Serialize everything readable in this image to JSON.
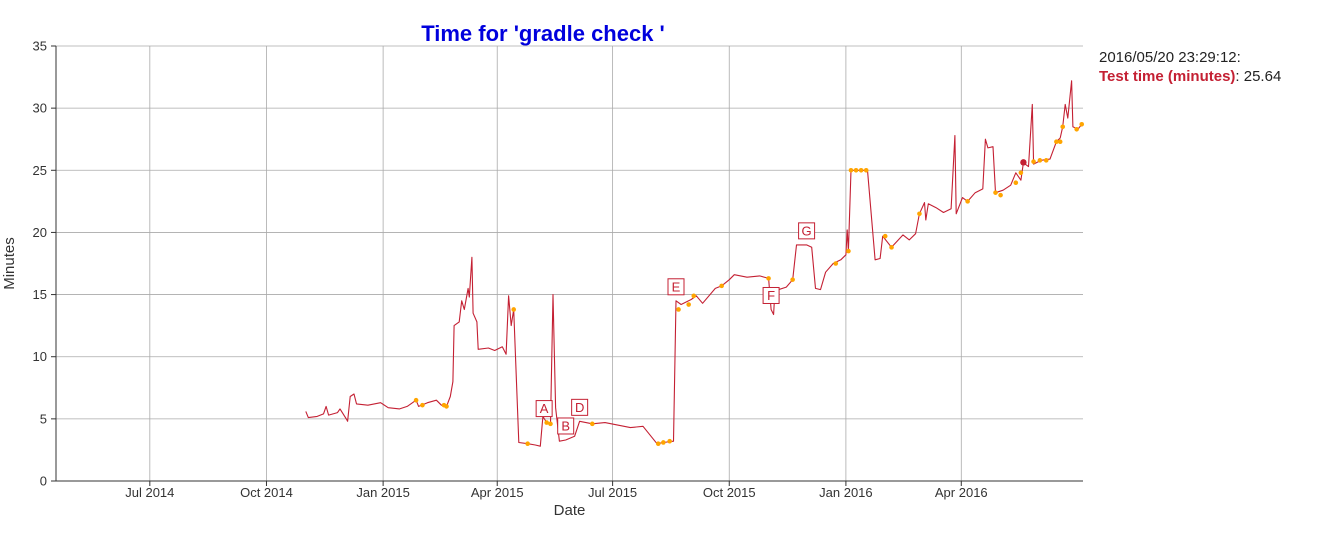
{
  "legend": {
    "timestamp": "2016/05/20 23:29:12:",
    "series_label": "Test time (minutes)",
    "series_value": "25.64"
  },
  "colors": {
    "line": "#c42033",
    "highlight_points": "#ffa500",
    "title": "#0000dd",
    "grid": "#aaaaaa"
  },
  "chart_data": {
    "type": "line",
    "title": "Time for 'gradle check '",
    "xlabel": "Date",
    "ylabel": "Minutes",
    "ylim": [
      0,
      35
    ],
    "xlim": [
      "2014-04-18",
      "2016-07-06"
    ],
    "yticks": [
      0,
      5,
      10,
      15,
      20,
      25,
      30,
      35
    ],
    "xticks": [
      {
        "date": "2014-07-01",
        "label": "Jul 2014"
      },
      {
        "date": "2014-10-01",
        "label": "Oct 2014"
      },
      {
        "date": "2015-01-01",
        "label": "Jan 2015"
      },
      {
        "date": "2015-04-01",
        "label": "Apr 2015"
      },
      {
        "date": "2015-07-01",
        "label": "Jul 2015"
      },
      {
        "date": "2015-10-01",
        "label": "Oct 2015"
      },
      {
        "date": "2016-01-01",
        "label": "Jan 2016"
      },
      {
        "date": "2016-04-01",
        "label": "Apr 2016"
      }
    ],
    "grid": true,
    "series": [
      {
        "name": "Test time (minutes)",
        "points": [
          [
            "2014-11-01",
            5.6
          ],
          [
            "2014-11-03",
            5.1
          ],
          [
            "2014-11-10",
            5.2
          ],
          [
            "2014-11-15",
            5.4
          ],
          [
            "2014-11-17",
            6.0
          ],
          [
            "2014-11-19",
            5.3
          ],
          [
            "2014-11-26",
            5.5
          ],
          [
            "2014-11-28",
            5.8
          ],
          [
            "2014-12-03",
            5.0
          ],
          [
            "2014-12-04",
            4.8
          ],
          [
            "2014-12-06",
            6.8
          ],
          [
            "2014-12-09",
            7.0
          ],
          [
            "2014-12-11",
            6.2
          ],
          [
            "2014-12-20",
            6.1
          ],
          [
            "2014-12-30",
            6.3
          ],
          [
            "2015-01-05",
            5.9
          ],
          [
            "2015-01-14",
            5.8
          ],
          [
            "2015-01-20",
            6.0
          ],
          [
            "2015-01-27",
            6.5
          ],
          [
            "2015-01-29",
            6.0
          ],
          [
            "2015-02-05",
            6.3
          ],
          [
            "2015-02-12",
            6.5
          ],
          [
            "2015-02-16",
            6.1
          ],
          [
            "2015-02-20",
            6.0
          ],
          [
            "2015-02-23",
            6.8
          ],
          [
            "2015-02-25",
            8.0
          ],
          [
            "2015-02-26",
            12.5
          ],
          [
            "2015-03-02",
            12.8
          ],
          [
            "2015-03-04",
            14.5
          ],
          [
            "2015-03-06",
            13.8
          ],
          [
            "2015-03-09",
            15.5
          ],
          [
            "2015-03-10",
            14.8
          ],
          [
            "2015-03-12",
            18.0
          ],
          [
            "2015-03-13",
            13.5
          ],
          [
            "2015-03-16",
            12.8
          ],
          [
            "2015-03-17",
            10.6
          ],
          [
            "2015-03-25",
            10.7
          ],
          [
            "2015-03-30",
            10.5
          ],
          [
            "2015-04-05",
            10.8
          ],
          [
            "2015-04-08",
            10.2
          ],
          [
            "2015-04-10",
            14.9
          ],
          [
            "2015-04-12",
            12.5
          ],
          [
            "2015-04-14",
            13.8
          ],
          [
            "2015-04-18",
            3.1
          ],
          [
            "2015-04-25",
            3.0
          ],
          [
            "2015-05-01",
            2.9
          ],
          [
            "2015-05-05",
            2.8
          ],
          [
            "2015-05-07",
            5.2
          ],
          [
            "2015-05-10",
            4.7
          ],
          [
            "2015-05-13",
            4.6
          ],
          [
            "2015-05-15",
            15.0
          ],
          [
            "2015-05-17",
            5.9
          ],
          [
            "2015-05-20",
            3.2
          ],
          [
            "2015-05-25",
            3.3
          ],
          [
            "2015-06-01",
            3.6
          ],
          [
            "2015-06-05",
            4.8
          ],
          [
            "2015-06-15",
            4.6
          ],
          [
            "2015-06-25",
            4.7
          ],
          [
            "2015-07-05",
            4.5
          ],
          [
            "2015-07-15",
            4.3
          ],
          [
            "2015-07-25",
            4.4
          ],
          [
            "2015-08-05",
            3.0
          ],
          [
            "2015-08-10",
            3.1
          ],
          [
            "2015-08-18",
            3.2
          ],
          [
            "2015-08-20",
            14.5
          ],
          [
            "2015-08-24",
            14.2
          ],
          [
            "2015-09-01",
            14.6
          ],
          [
            "2015-09-05",
            14.9
          ],
          [
            "2015-09-10",
            14.3
          ],
          [
            "2015-09-20",
            15.5
          ],
          [
            "2015-09-25",
            15.7
          ],
          [
            "2015-10-01",
            16.2
          ],
          [
            "2015-10-05",
            16.6
          ],
          [
            "2015-10-15",
            16.4
          ],
          [
            "2015-10-25",
            16.5
          ],
          [
            "2015-11-01",
            16.3
          ],
          [
            "2015-11-03",
            13.8
          ],
          [
            "2015-11-05",
            13.4
          ],
          [
            "2015-11-06",
            15.3
          ],
          [
            "2015-11-15",
            15.6
          ],
          [
            "2015-11-20",
            16.2
          ],
          [
            "2015-11-23",
            19.0
          ],
          [
            "2015-12-01",
            19.0
          ],
          [
            "2015-12-05",
            18.8
          ],
          [
            "2015-12-08",
            15.5
          ],
          [
            "2015-12-12",
            15.4
          ],
          [
            "2015-12-16",
            16.8
          ],
          [
            "2015-12-22",
            17.5
          ],
          [
            "2015-12-28",
            17.8
          ],
          [
            "2016-01-01",
            18.2
          ],
          [
            "2016-01-02",
            20.2
          ],
          [
            "2016-01-03",
            18.5
          ],
          [
            "2016-01-05",
            25.0
          ],
          [
            "2016-01-18",
            25.0
          ],
          [
            "2016-01-24",
            17.8
          ],
          [
            "2016-01-28",
            17.9
          ],
          [
            "2016-01-30",
            19.7
          ],
          [
            "2016-02-06",
            18.8
          ],
          [
            "2016-02-15",
            19.8
          ],
          [
            "2016-02-20",
            19.4
          ],
          [
            "2016-02-25",
            19.9
          ],
          [
            "2016-02-28",
            21.5
          ],
          [
            "2016-03-03",
            22.4
          ],
          [
            "2016-03-04",
            21.0
          ],
          [
            "2016-03-06",
            22.3
          ],
          [
            "2016-03-12",
            22.0
          ],
          [
            "2016-03-18",
            21.6
          ],
          [
            "2016-03-24",
            21.9
          ],
          [
            "2016-03-27",
            27.8
          ],
          [
            "2016-03-28",
            21.5
          ],
          [
            "2016-04-02",
            22.8
          ],
          [
            "2016-04-06",
            22.5
          ],
          [
            "2016-04-12",
            23.2
          ],
          [
            "2016-04-18",
            23.5
          ],
          [
            "2016-04-20",
            27.5
          ],
          [
            "2016-04-22",
            26.8
          ],
          [
            "2016-04-26",
            26.9
          ],
          [
            "2016-04-28",
            23.2
          ],
          [
            "2016-05-04",
            23.4
          ],
          [
            "2016-05-10",
            23.8
          ],
          [
            "2016-05-14",
            24.8
          ],
          [
            "2016-05-18",
            24.2
          ],
          [
            "2016-05-20",
            25.6
          ],
          [
            "2016-05-24",
            25.3
          ],
          [
            "2016-05-27",
            30.3
          ],
          [
            "2016-05-28",
            25.5
          ],
          [
            "2016-06-03",
            25.8
          ],
          [
            "2016-06-10",
            25.9
          ],
          [
            "2016-06-15",
            27.3
          ],
          [
            "2016-06-18",
            27.6
          ],
          [
            "2016-06-20",
            28.5
          ],
          [
            "2016-06-22",
            30.3
          ],
          [
            "2016-06-24",
            29.2
          ],
          [
            "2016-06-27",
            32.2
          ],
          [
            "2016-06-28",
            28.5
          ],
          [
            "2016-07-02",
            28.3
          ],
          [
            "2016-07-05",
            28.7
          ]
        ]
      }
    ],
    "highlight_points": [
      [
        "2015-01-27",
        6.5
      ],
      [
        "2015-02-01",
        6.1
      ],
      [
        "2015-02-18",
        6.1
      ],
      [
        "2015-02-20",
        6.0
      ],
      [
        "2015-04-14",
        13.8
      ],
      [
        "2015-04-25",
        3.0
      ],
      [
        "2015-05-10",
        4.7
      ],
      [
        "2015-05-13",
        4.6
      ],
      [
        "2015-06-15",
        4.6
      ],
      [
        "2015-08-06",
        3.0
      ],
      [
        "2015-08-10",
        3.1
      ],
      [
        "2015-08-15",
        3.2
      ],
      [
        "2015-08-22",
        13.8
      ],
      [
        "2015-08-30",
        14.2
      ],
      [
        "2015-09-03",
        14.9
      ],
      [
        "2015-09-25",
        15.7
      ],
      [
        "2015-11-01",
        16.3
      ],
      [
        "2015-11-20",
        16.2
      ],
      [
        "2015-12-24",
        17.5
      ],
      [
        "2016-01-03",
        18.5
      ],
      [
        "2016-01-05",
        25.0
      ],
      [
        "2016-01-09",
        25.0
      ],
      [
        "2016-01-13",
        25.0
      ],
      [
        "2016-01-17",
        25.0
      ],
      [
        "2016-02-01",
        19.7
      ],
      [
        "2016-02-06",
        18.8
      ],
      [
        "2016-02-28",
        21.5
      ],
      [
        "2016-04-06",
        22.5
      ],
      [
        "2016-04-28",
        23.2
      ],
      [
        "2016-05-02",
        23.0
      ],
      [
        "2016-05-14",
        24.0
      ],
      [
        "2016-05-18",
        24.8
      ],
      [
        "2016-05-28",
        25.7
      ],
      [
        "2016-06-02",
        25.8
      ],
      [
        "2016-06-07",
        25.8
      ],
      [
        "2016-06-15",
        27.3
      ],
      [
        "2016-06-18",
        27.3
      ],
      [
        "2016-06-20",
        28.5
      ],
      [
        "2016-07-01",
        28.3
      ],
      [
        "2016-07-05",
        28.7
      ]
    ],
    "selected_point": [
      "2016-05-20",
      25.64
    ],
    "annotations": [
      {
        "label": "A",
        "date": "2015-05-08",
        "value": 4.7
      },
      {
        "label": "B",
        "date": "2015-05-25",
        "value": 3.3
      },
      {
        "label": "D",
        "date": "2015-06-05",
        "value": 4.8
      },
      {
        "label": "E",
        "date": "2015-08-20",
        "value": 14.5
      },
      {
        "label": "F",
        "date": "2015-11-03",
        "value": 13.8
      },
      {
        "label": "G",
        "date": "2015-12-01",
        "value": 19.0
      }
    ]
  }
}
